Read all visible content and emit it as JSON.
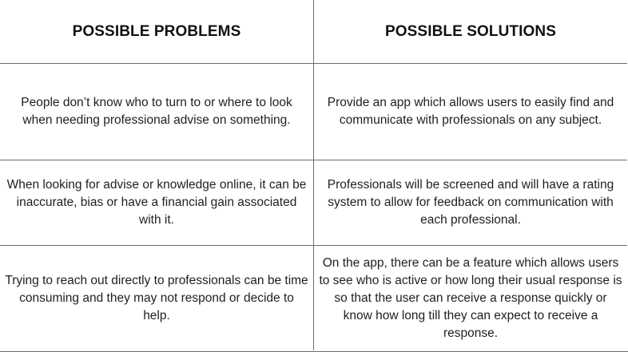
{
  "table": {
    "headers": {
      "problems": "POSSIBLE PROBLEMS",
      "solutions": "POSSIBLE SOLUTIONS"
    },
    "rows": [
      {
        "problem": "People don’t know who to turn to or where to look when needing professional advise on something.",
        "solution": "Provide an app which allows users to easily find and communicate with professionals on any subject."
      },
      {
        "problem": "When looking for advise or knowledge online, it can be inaccurate, bias or have a financial gain associated with it.",
        "solution": "Professionals will be screened and will have a rating system to allow for feedback on communication with each professional."
      },
      {
        "problem": "Trying to reach out directly to professionals can be time consuming and they may not respond or decide to help.",
        "solution": "On the app, there can be a feature which allows users to see who is active or how long their usual response is so that the user can receive a response quickly or know how long till they can expect to receive a response."
      }
    ]
  }
}
